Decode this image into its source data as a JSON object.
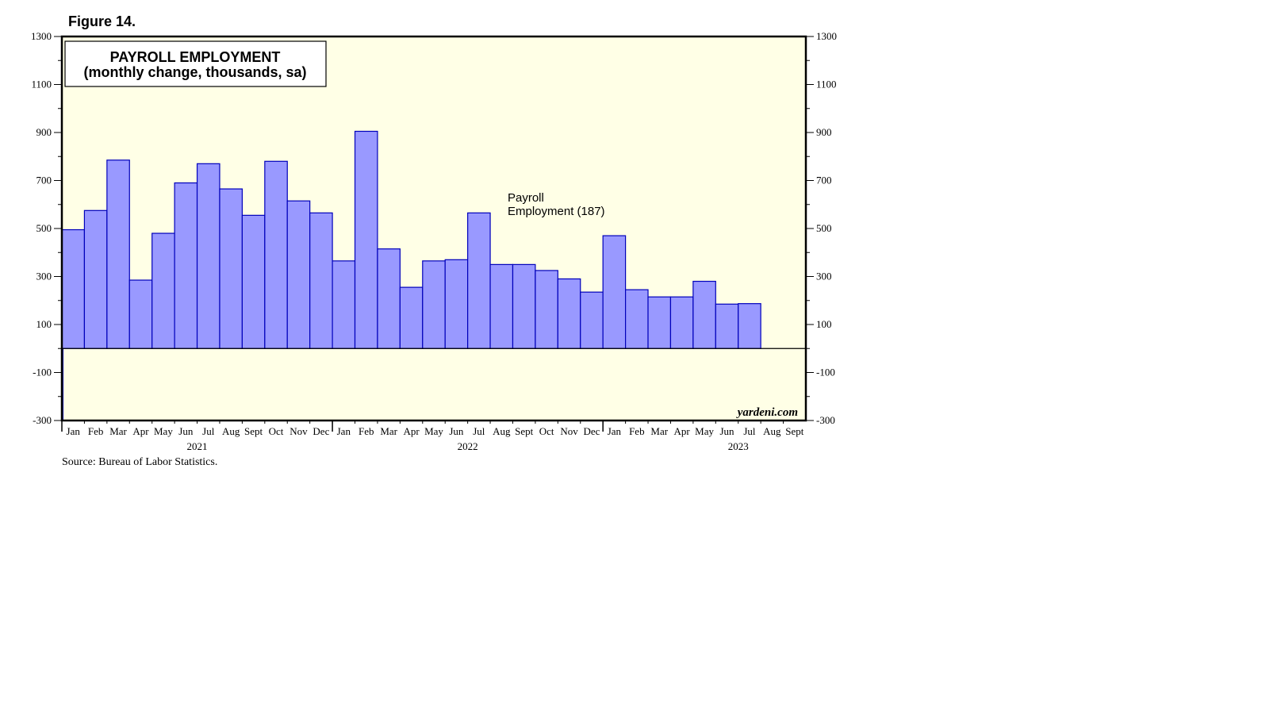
{
  "figure_label": "Figure 14.",
  "source_note": "Source: Bureau of Labor Statistics.",
  "watermark": "yardeni.com",
  "colors": {
    "plot_background": "#ffffe6",
    "bar_fill": "#9999ff",
    "bar_stroke": "#0000bb",
    "frame": "#000000"
  },
  "chart_data": {
    "type": "bar",
    "title": "PAYROLL EMPLOYMENT",
    "subtitle": "(monthly change, thousands, sa)",
    "annotation": [
      "Payroll",
      "Employment (187)"
    ],
    "ylim": [
      -300,
      1300
    ],
    "y_ticks": [
      -300,
      -100,
      100,
      300,
      500,
      700,
      900,
      1100,
      1300
    ],
    "grid": false,
    "categories": [
      "Jan",
      "Feb",
      "Mar",
      "Apr",
      "May",
      "Jun",
      "Jul",
      "Aug",
      "Sept",
      "Oct",
      "Nov",
      "Dec",
      "Jan",
      "Feb",
      "Mar",
      "Apr",
      "May",
      "Jun",
      "Jul",
      "Aug",
      "Sept",
      "Oct",
      "Nov",
      "Dec",
      "Jan",
      "Feb",
      "Mar",
      "Apr",
      "May",
      "Jun",
      "Jul",
      "Aug",
      "Sept"
    ],
    "years": [
      {
        "label": "2021",
        "start_index": 0,
        "months": 12
      },
      {
        "label": "2022",
        "start_index": 12,
        "months": 12
      },
      {
        "label": "2023",
        "start_index": 24,
        "months": 9
      }
    ],
    "series": [
      {
        "name": "Payroll Employment",
        "values": [
          495,
          575,
          785,
          285,
          480,
          690,
          770,
          665,
          555,
          780,
          615,
          565,
          365,
          905,
          415,
          255,
          365,
          370,
          565,
          350,
          350,
          325,
          290,
          235,
          470,
          245,
          215,
          215,
          280,
          185,
          187,
          null,
          null
        ]
      }
    ]
  }
}
